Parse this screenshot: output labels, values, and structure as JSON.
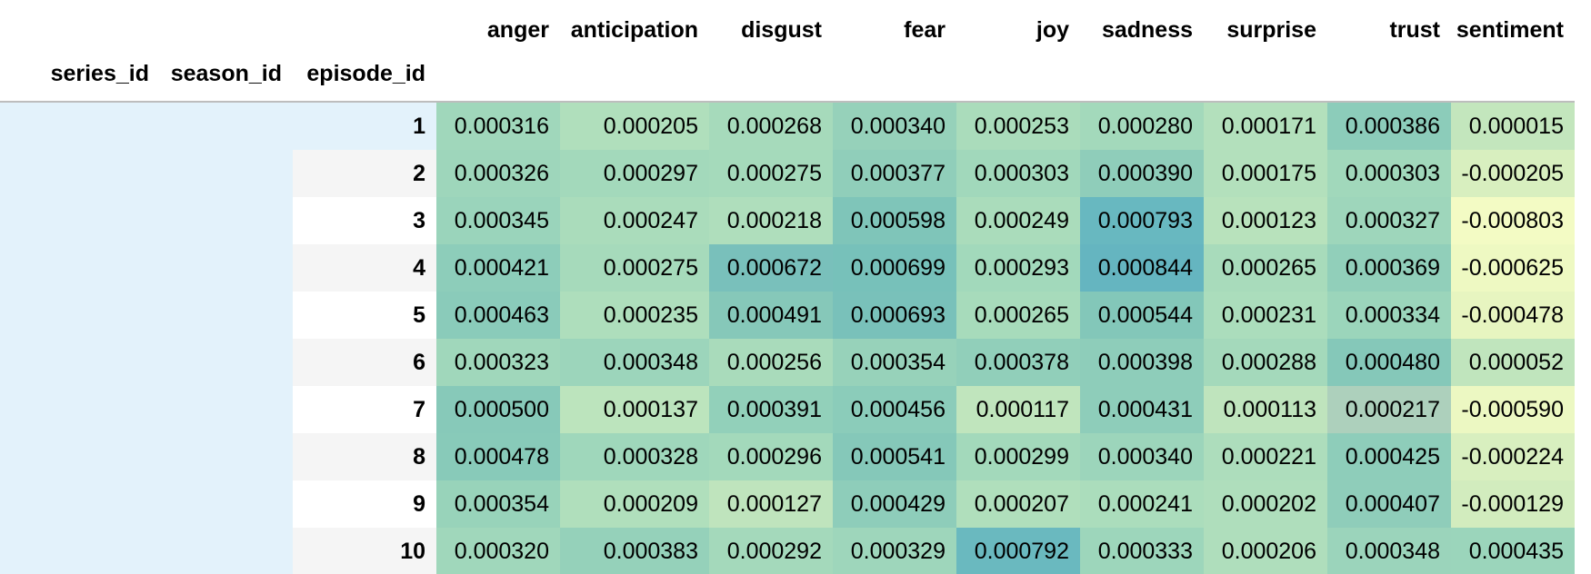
{
  "table": {
    "columns": [
      "anger",
      "anticipation",
      "disgust",
      "fear",
      "joy",
      "sadness",
      "surprise",
      "trust",
      "sentiment"
    ],
    "index_names": [
      "series_id",
      "season_id",
      "episode_id"
    ],
    "rows": [
      {
        "episode": "1",
        "values": [
          "0.000316",
          "0.000205",
          "0.000268",
          "0.000340",
          "0.000253",
          "0.000280",
          "0.000171",
          "0.000386",
          "0.000015"
        ],
        "colors": [
          "#a0d7bb",
          "#b0dfbc",
          "#a6dabb",
          "#96d1ba",
          "#aadcbb",
          "#a3d9bb",
          "#b3e0bc",
          "#8cccba",
          "#c3e6bd"
        ]
      },
      {
        "episode": "2",
        "values": [
          "0.000326",
          "0.000297",
          "0.000275",
          "0.000377",
          "0.000303",
          "0.000390",
          "0.000175",
          "0.000303",
          "-0.000205"
        ],
        "colors": [
          "#9ed6bb",
          "#a3d9bb",
          "#a5dabb",
          "#90ceba",
          "#a1d8bb",
          "#8fcdba",
          "#b3e0bc",
          "#a1d8bb",
          "#d8efbf"
        ]
      },
      {
        "episode": "3",
        "values": [
          "0.000345",
          "0.000247",
          "0.000218",
          "0.000598",
          "0.000249",
          "0.000793",
          "0.000123",
          "0.000327",
          "-0.000803"
        ],
        "colors": [
          "#9ad4bb",
          "#aadcbb",
          "#afdebc",
          "#7fc5b9",
          "#aadcbb",
          "#68b8c0",
          "#b8e2bc",
          "#9ed6bb",
          "#f3fbc4"
        ]
      },
      {
        "episode": "4",
        "values": [
          "0.000421",
          "0.000275",
          "0.000672",
          "0.000699",
          "0.000293",
          "0.000844",
          "0.000265",
          "0.000369",
          "-0.000625"
        ],
        "colors": [
          "#8dcdba",
          "#a6dabb",
          "#79c0bb",
          "#77c1ba",
          "#a2d9bb",
          "#65b5c0",
          "#a8dbbb",
          "#91cfba",
          "#eef9c2"
        ]
      },
      {
        "episode": "5",
        "values": [
          "0.000463",
          "0.000235",
          "0.000491",
          "0.000693",
          "0.000265",
          "0.000544",
          "0.000231",
          "0.000334",
          "-0.000478"
        ],
        "colors": [
          "#8acbba",
          "#aedebc",
          "#86c8b9",
          "#79c1ba",
          "#a7dbbb",
          "#83c7b9",
          "#abddbc",
          "#9bd5bb",
          "#e7f5c0"
        ]
      },
      {
        "episode": "6",
        "values": [
          "0.000323",
          "0.000348",
          "0.000256",
          "0.000354",
          "0.000378",
          "0.000398",
          "0.000288",
          "0.000480",
          "0.000052"
        ],
        "colors": [
          "#a0d7bb",
          "#9cd5bb",
          "#a9dbbb",
          "#97d2ba",
          "#91cfba",
          "#8ecdba",
          "#a4d9bb",
          "#85c8b9",
          "#c0e5bd"
        ]
      },
      {
        "episode": "7",
        "values": [
          "0.000500",
          "0.000137",
          "0.000391",
          "0.000456",
          "0.000117",
          "0.000431",
          "0.000113",
          "0.000217",
          "-0.000590"
        ],
        "colors": [
          "#87c9b9",
          "#bce4bd",
          "#92d0ba",
          "#8bccba",
          "#c0e5bd",
          "#8ecdba",
          "#bfe4bd",
          "#add0bc",
          "#ecf8c2"
        ]
      },
      {
        "episode": "8",
        "values": [
          "0.000478",
          "0.000328",
          "0.000296",
          "0.000541",
          "0.000299",
          "0.000340",
          "0.000221",
          "0.000425",
          "-0.000224"
        ],
        "colors": [
          "#88cab9",
          "#9fd7bb",
          "#a3d9bb",
          "#85c8b9",
          "#a3d9bb",
          "#9cd5bb",
          "#adddbc",
          "#8ecdba",
          "#d8efbf"
        ]
      },
      {
        "episode": "9",
        "values": [
          "0.000354",
          "0.000209",
          "0.000127",
          "0.000429",
          "0.000207",
          "0.000241",
          "0.000202",
          "0.000407",
          "-0.000129"
        ],
        "colors": [
          "#98d3ba",
          "#b0dfbc",
          "#bfe4bd",
          "#8ecdba",
          "#b0dfbc",
          "#abddbc",
          "#afdebc",
          "#8fcdba",
          "#d2ecbe"
        ]
      },
      {
        "episode": "10",
        "values": [
          "0.000320",
          "0.000383",
          "0.000292",
          "0.000329",
          "0.000792",
          "0.000333",
          "0.000206",
          "0.000348",
          "0.000435"
        ],
        "colors": [
          "#a0d7bb",
          "#95d1ba",
          "#a4d9bb",
          "#9ed6bb",
          "#6ab9bf",
          "#9dd6bb",
          "#afdebc",
          "#9bd4bb",
          "#9bd5bb"
        ]
      }
    ]
  },
  "colors": {
    "index_level_bg": "#e3f2fb",
    "row_alt_bg": "#f5f5f5",
    "header_rule": "#bdbdbd",
    "scale_low": "#ffffcc",
    "scale_mid": "#a1dab4",
    "scale_high": "#41b6c4"
  }
}
